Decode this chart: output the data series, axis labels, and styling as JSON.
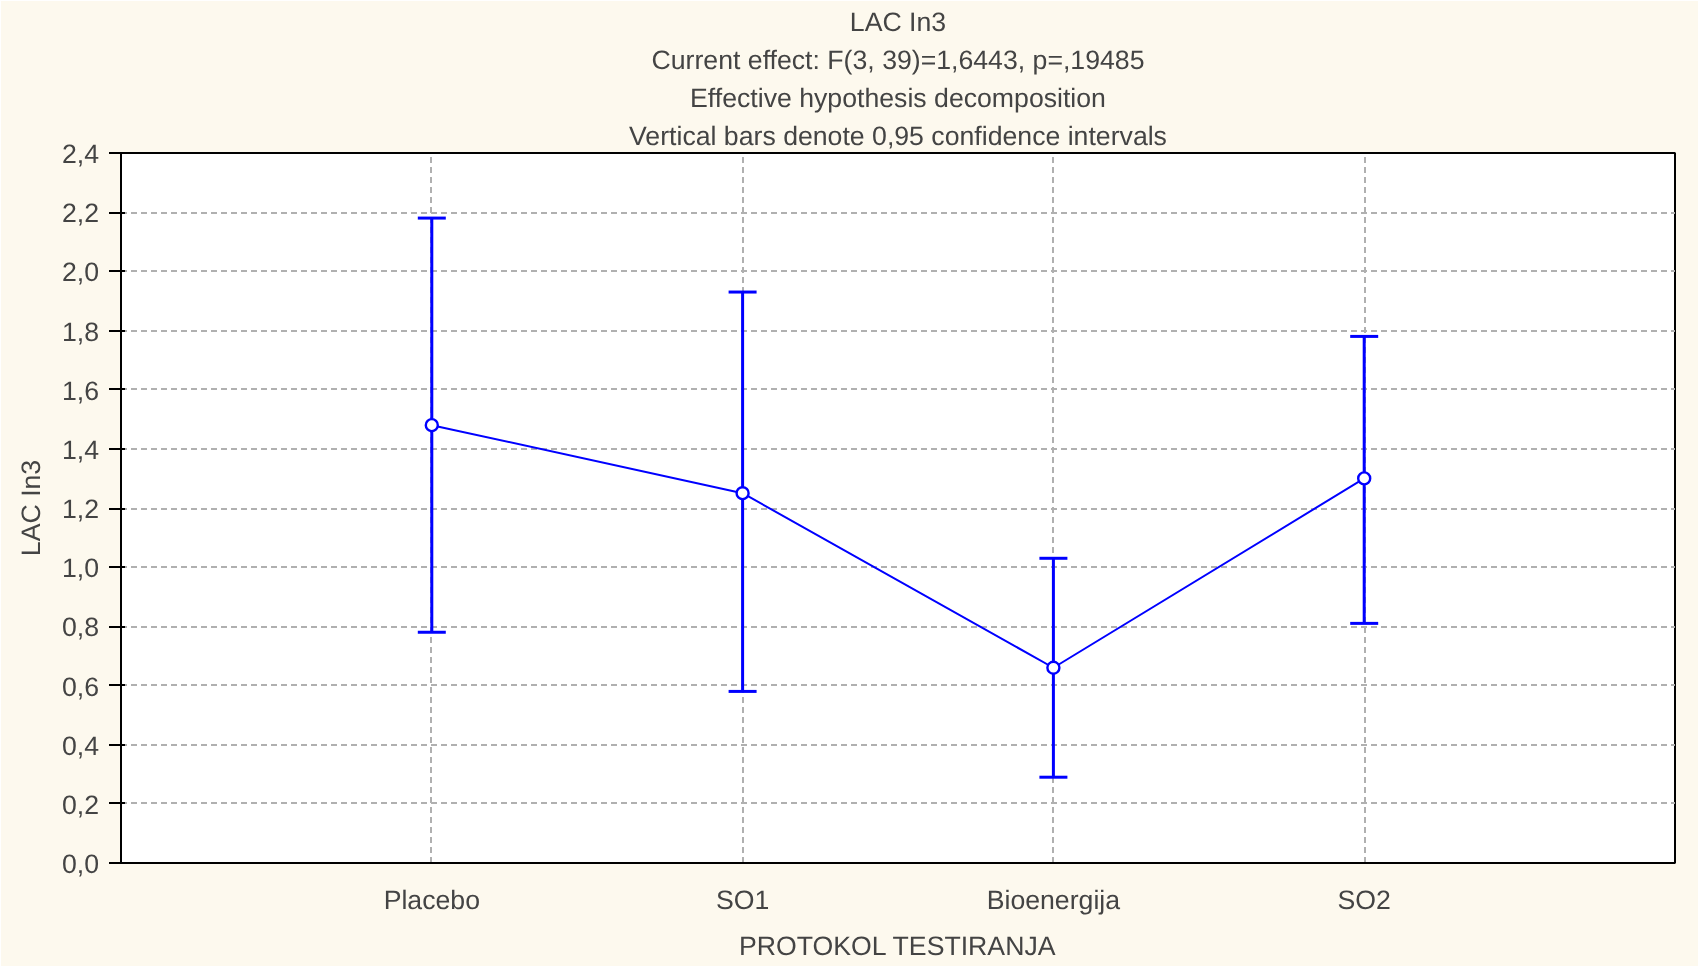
{
  "chart_data": {
    "type": "line",
    "title": "LAC In3",
    "subtitle": "Current effect: F(3, 39)=1,6443, p=,19485",
    "annotations": [
      "Effective hypothesis decomposition",
      "Vertical bars denote 0,95 confidence intervals"
    ],
    "xlabel": "PROTOKOL TESTIRANJA",
    "ylabel": "LAC In3",
    "categories": [
      "Placebo",
      "SO1",
      "Bioenergija",
      "SO2"
    ],
    "series": [
      {
        "color": "#0000ff",
        "values": [
          1.48,
          1.25,
          0.66,
          1.3
        ],
        "errors": [
          [
            0.78,
            2.18
          ],
          [
            0.58,
            1.93
          ],
          [
            0.29,
            1.03
          ],
          [
            0.81,
            1.78
          ]
        ]
      }
    ],
    "ylim": [
      0,
      2.4
    ],
    "yticks": [
      {
        "value": 0,
        "label": "0,0"
      },
      {
        "value": 0.2,
        "label": "0,2"
      },
      {
        "value": 0.4,
        "label": "0,4"
      },
      {
        "value": 0.6,
        "label": "0,6"
      },
      {
        "value": 0.8,
        "label": "0,8"
      },
      {
        "value": 1.0,
        "label": "1,0"
      },
      {
        "value": 1.2,
        "label": "1,2"
      },
      {
        "value": 1.4,
        "label": "1,4"
      },
      {
        "value": 1.6,
        "label": "1,6"
      },
      {
        "value": 1.8,
        "label": "1,8"
      },
      {
        "value": 2.0,
        "label": "2,0"
      },
      {
        "value": 2.2,
        "label": "2,2"
      },
      {
        "value": 2.4,
        "label": "2,4"
      }
    ],
    "grid": true,
    "marker": "circle",
    "line_style": "solid"
  }
}
